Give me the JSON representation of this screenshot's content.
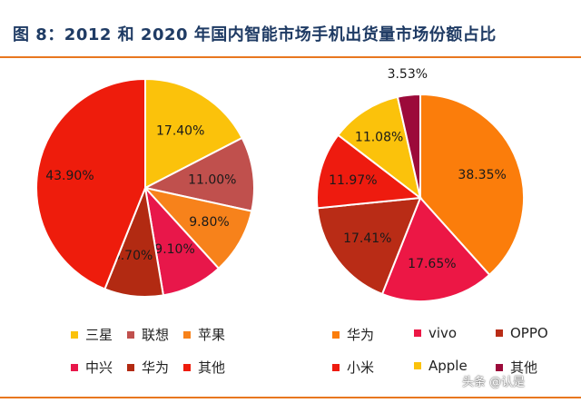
{
  "title": "图 8：2012 和 2020 年国内智能市场手机出货量市场份额占比",
  "watermark": "头条 @认是",
  "chart_data": [
    {
      "type": "pie",
      "title": "",
      "categories": [
        "三星",
        "联想",
        "苹果",
        "中兴",
        "华为",
        "其他"
      ],
      "values": [
        17.4,
        11.0,
        9.8,
        9.1,
        8.7,
        43.9
      ],
      "labels": [
        "17.40%",
        "11.00%",
        "9.80%",
        "9.10%",
        "8.70%",
        "43.90%"
      ],
      "colors": [
        "#fbc20b",
        "#c0504d",
        "#f7821b",
        "#e8174a",
        "#b22a12",
        "#ee1c0c"
      ],
      "legend": [
        "三星",
        "联想",
        "苹果",
        "中兴",
        "华为",
        "其他"
      ],
      "legend_position": "bottom"
    },
    {
      "type": "pie",
      "title": "",
      "categories": [
        "华为",
        "vivo",
        "OPPO",
        "小米",
        "Apple",
        "其他"
      ],
      "values": [
        38.35,
        17.65,
        17.41,
        11.97,
        11.08,
        3.53
      ],
      "labels": [
        "38.35%",
        "17.65%",
        "17.41%",
        "11.97%",
        "11.08%",
        "3.53%"
      ],
      "colors": [
        "#fb7d0b",
        "#ec1745",
        "#b92c16",
        "#ee1b0f",
        "#fbc20b",
        "#9c0a3a"
      ],
      "legend": [
        "华为",
        "vivo",
        "OPPO",
        "小米",
        "Apple",
        "其他"
      ],
      "legend_position": "bottom"
    }
  ]
}
